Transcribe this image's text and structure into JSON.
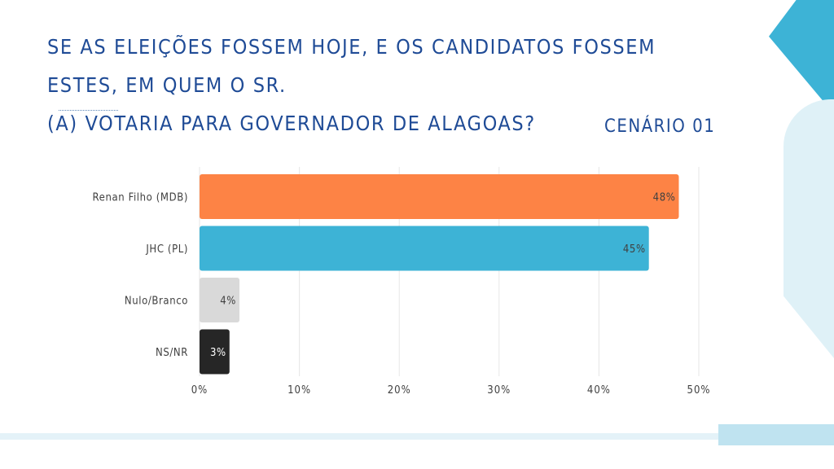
{
  "header": {
    "title_line1": "SE AS ELEIÇÕES FOSSEM HOJE, E OS CANDIDATOS FOSSEM ESTES, EM QUEM O SR.",
    "title_line2": "(A) VOTARIA PARA GOVERNADOR DE ALAGOAS?",
    "scenario": "CENÁRIO 01"
  },
  "colors": {
    "title": "#1f4b96",
    "accent_blue": "#3db3d6",
    "light_blue": "#dff1f7"
  },
  "chart_data": {
    "type": "bar",
    "orientation": "horizontal",
    "categories": [
      "Renan Filho (MDB)",
      "JHC (PL)",
      "Nulo/Branco",
      "NS/NR"
    ],
    "values": [
      48,
      45,
      4,
      3
    ],
    "value_labels": [
      "48%",
      "45%",
      "4%",
      "3%"
    ],
    "colors": [
      "#fd8345",
      "#3db3d6",
      "#d9d9d9",
      "#262626"
    ],
    "xlim": [
      0,
      50
    ],
    "x_ticks": [
      0,
      10,
      20,
      30,
      40,
      50
    ],
    "x_tick_labels": [
      "0%",
      "10%",
      "20%",
      "30%",
      "40%",
      "50%"
    ],
    "grid": true,
    "legend": "none"
  }
}
